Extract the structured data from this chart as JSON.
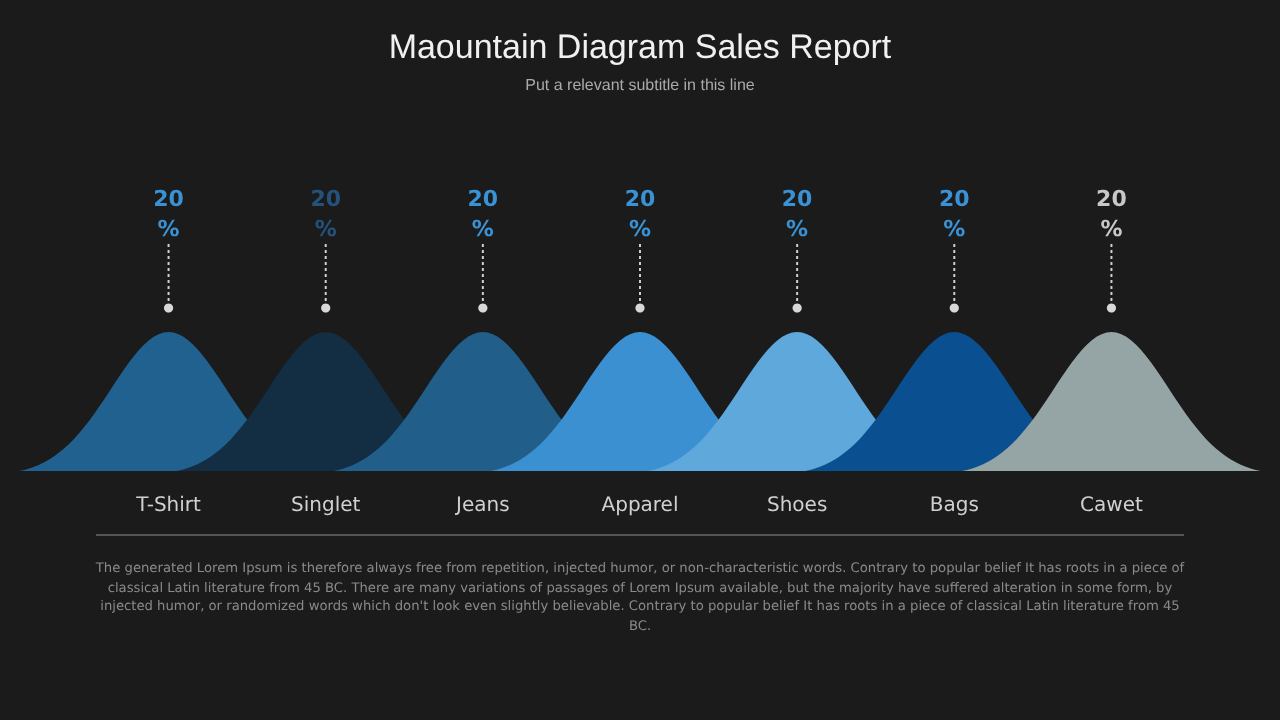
{
  "chart_data": {
    "type": "other",
    "title": "Maountain Diagram Sales Report",
    "subtitle": "Put a relevant subtitle in this line",
    "annotations": [
      "The generated Lorem Ipsum is therefore always free from repetition, injected humor, or non-characteristic words. Contrary to popular belief It has roots in a piece of classical Latin literature from 45 BC. There are many variations of passages of Lorem Ipsum available, but the majority have suffered alteration in some form, by injected humor, or randomized words which don't look even slightly believable. Contrary to popular belief It has roots in a piece of classical Latin literature from 45 BC."
    ],
    "categories": [
      "T-Shirt",
      "Singlet",
      "Jeans",
      "Apparel",
      "Shoes",
      "Bags",
      "Cawet"
    ],
    "values": [
      20,
      20,
      20,
      20,
      20,
      20,
      20
    ],
    "value_labels": [
      "20\n%",
      "20\n%",
      "20\n%",
      "20\n%",
      "20\n%",
      "20\n%",
      "20\n%"
    ],
    "colors": [
      "#21618f",
      "#132d42",
      "#215f8a",
      "#3a90d0",
      "#5ea8dc",
      "#0a5090",
      "#95a5a6"
    ]
  }
}
